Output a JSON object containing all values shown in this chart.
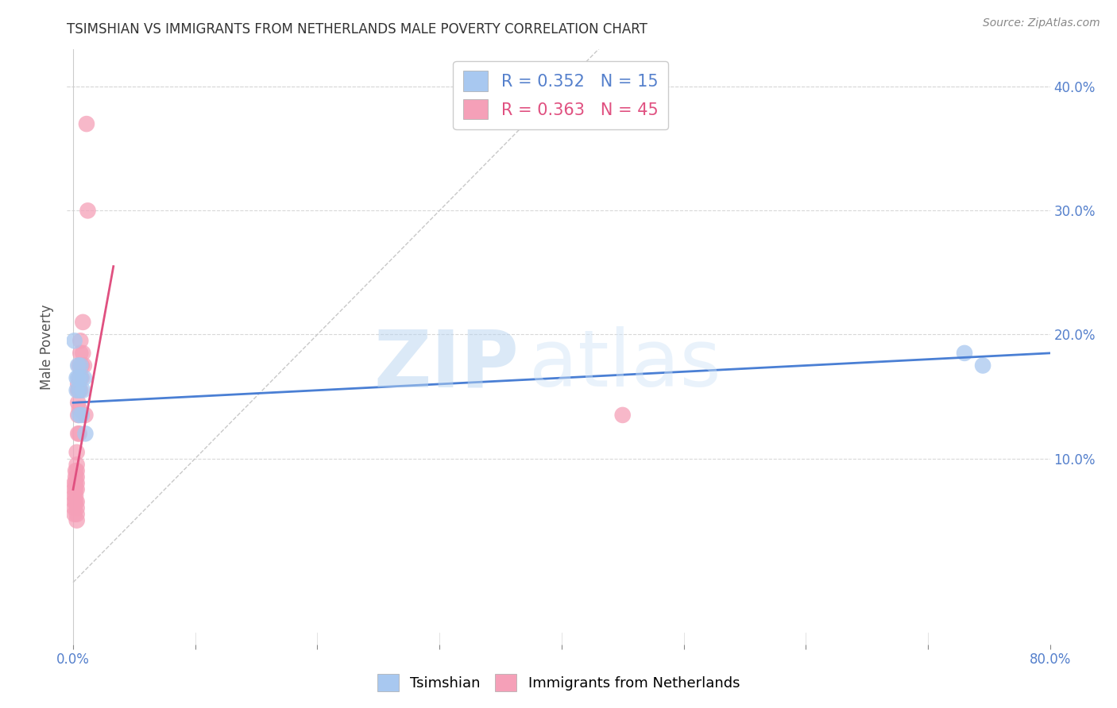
{
  "title": "TSIMSHIAN VS IMMIGRANTS FROM NETHERLANDS MALE POVERTY CORRELATION CHART",
  "source": "Source: ZipAtlas.com",
  "xlabel_ticks": [
    "0.0%",
    "",
    "",
    "",
    "",
    "",
    "",
    "",
    "80.0%"
  ],
  "xlabel_vals": [
    0.0,
    0.1,
    0.2,
    0.3,
    0.4,
    0.5,
    0.6,
    0.7,
    0.8
  ],
  "ylabel": "Male Poverty",
  "ylabel_ticks": [
    "40.0%",
    "30.0%",
    "20.0%",
    "10.0%"
  ],
  "ylabel_vals": [
    0.4,
    0.3,
    0.2,
    0.1
  ],
  "xlim": [
    -0.005,
    0.8
  ],
  "ylim": [
    -0.05,
    0.43
  ],
  "tsimshian_R": 0.352,
  "tsimshian_N": 15,
  "netherlands_R": 0.363,
  "netherlands_N": 45,
  "tsimshian_color": "#a8c8f0",
  "netherlands_color": "#f5a0b8",
  "tsimshian_line_color": "#4a7fd4",
  "netherlands_line_color": "#e05080",
  "diagonal_color": "#c8c8c8",
  "background_color": "#ffffff",
  "grid_color": "#d8d8d8",
  "watermark_zip": "ZIP",
  "watermark_atlas": "atlas",
  "tsimshian_x": [
    0.001,
    0.003,
    0.003,
    0.004,
    0.004,
    0.005,
    0.005,
    0.006,
    0.006,
    0.007,
    0.008,
    0.009,
    0.01,
    0.73,
    0.745
  ],
  "tsimshian_y": [
    0.195,
    0.165,
    0.155,
    0.175,
    0.165,
    0.155,
    0.135,
    0.175,
    0.165,
    0.135,
    0.155,
    0.165,
    0.12,
    0.185,
    0.175
  ],
  "netherlands_x": [
    0.001,
    0.001,
    0.001,
    0.001,
    0.001,
    0.001,
    0.002,
    0.002,
    0.002,
    0.002,
    0.002,
    0.002,
    0.003,
    0.003,
    0.003,
    0.003,
    0.003,
    0.003,
    0.003,
    0.003,
    0.003,
    0.003,
    0.004,
    0.004,
    0.004,
    0.004,
    0.004,
    0.005,
    0.005,
    0.005,
    0.005,
    0.005,
    0.006,
    0.006,
    0.006,
    0.006,
    0.007,
    0.007,
    0.008,
    0.008,
    0.009,
    0.01,
    0.011,
    0.012,
    0.45
  ],
  "netherlands_y": [
    0.08,
    0.075,
    0.07,
    0.065,
    0.06,
    0.055,
    0.09,
    0.085,
    0.08,
    0.075,
    0.07,
    0.065,
    0.105,
    0.095,
    0.09,
    0.085,
    0.08,
    0.075,
    0.065,
    0.06,
    0.055,
    0.05,
    0.16,
    0.155,
    0.145,
    0.135,
    0.12,
    0.175,
    0.165,
    0.155,
    0.14,
    0.12,
    0.195,
    0.185,
    0.165,
    0.155,
    0.175,
    0.165,
    0.21,
    0.185,
    0.175,
    0.135,
    0.37,
    0.3,
    0.135
  ],
  "tsimshian_line_x0": 0.0,
  "tsimshian_line_x1": 0.8,
  "tsimshian_line_y0": 0.145,
  "tsimshian_line_y1": 0.185,
  "netherlands_line_x0": 0.0,
  "netherlands_line_x1": 0.033,
  "netherlands_line_y0": 0.075,
  "netherlands_line_y1": 0.255
}
